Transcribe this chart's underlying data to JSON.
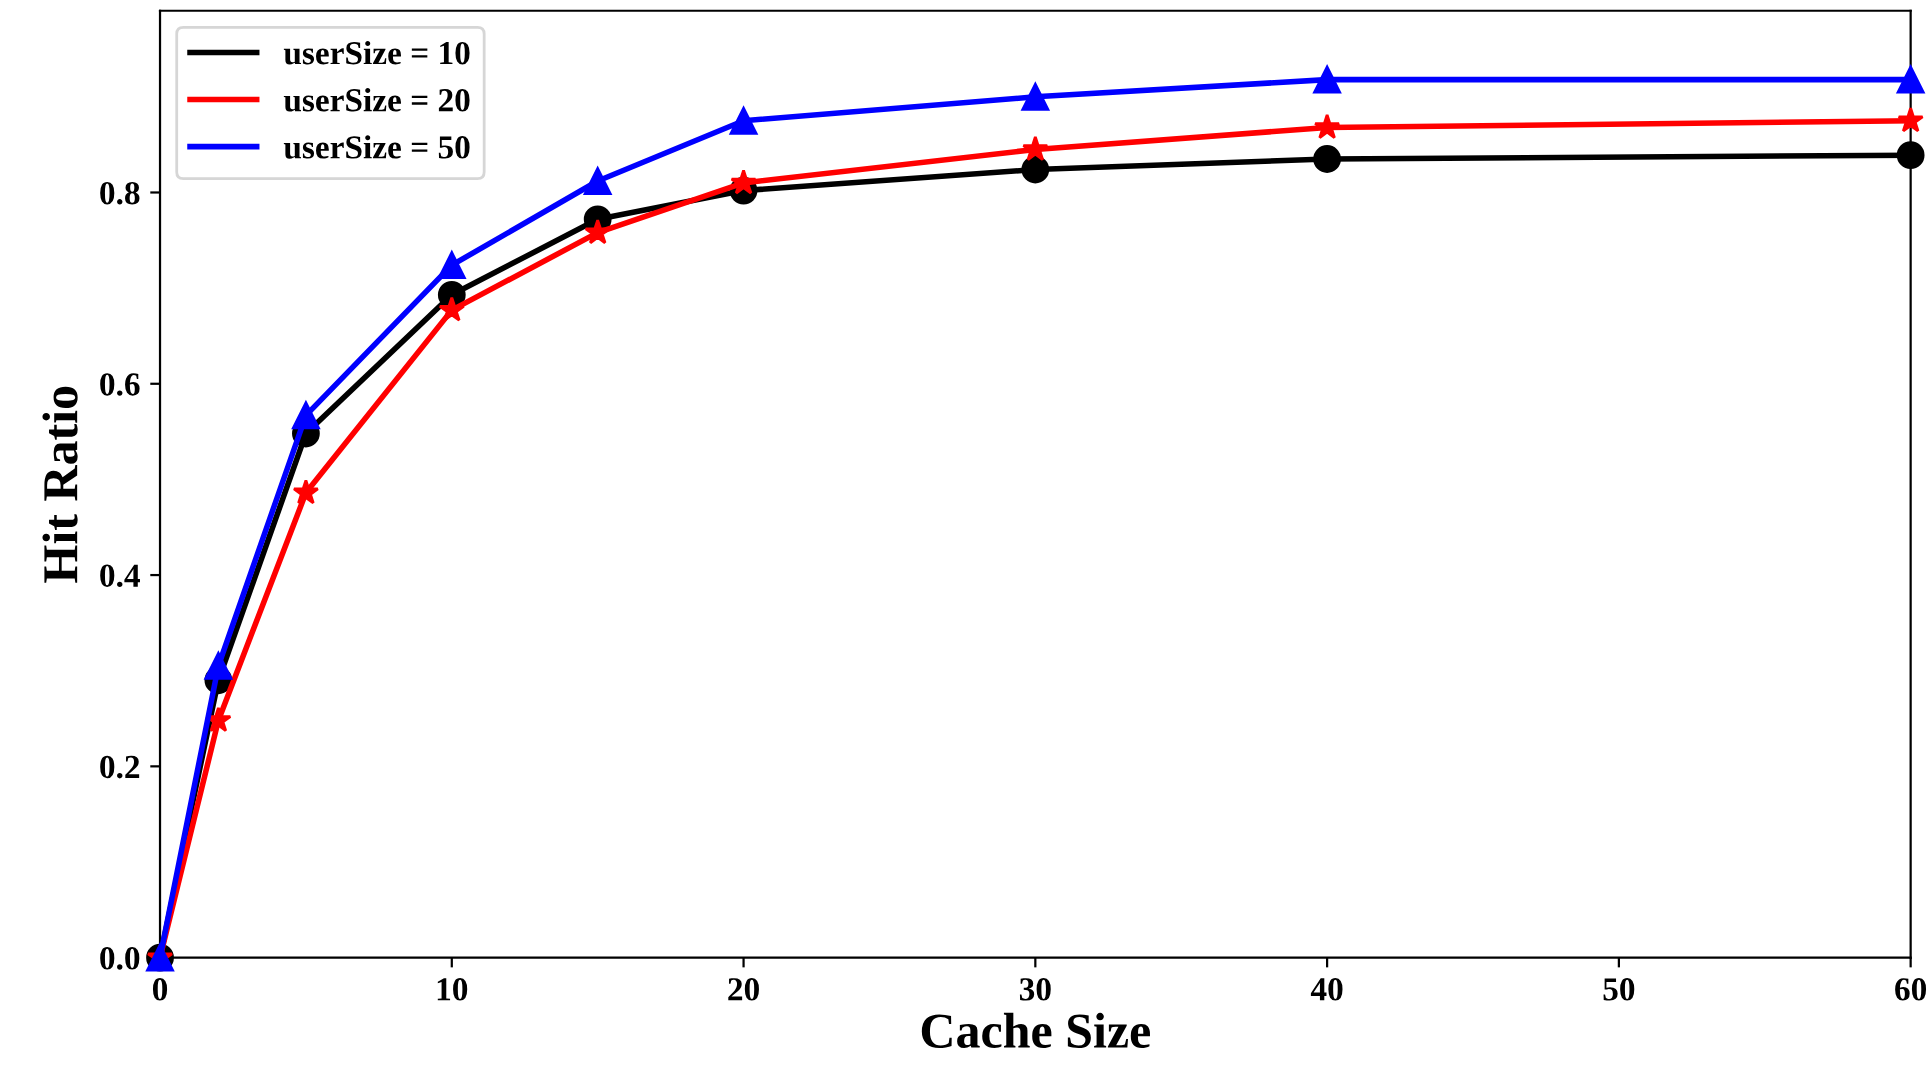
{
  "chart_data": {
    "type": "line",
    "xlabel": "Cache Size",
    "ylabel": "Hit Ratio",
    "x": [
      0,
      2,
      5,
      10,
      15,
      20,
      30,
      40,
      60
    ],
    "series": [
      {
        "name": "userSize = 10",
        "color": "#000000",
        "marker": "circle",
        "values": [
          0,
          0.29,
          0.548,
          0.693,
          0.772,
          0.802,
          0.824,
          0.835,
          0.839
        ]
      },
      {
        "name": "userSize = 20",
        "color": "#ff0000",
        "marker": "star",
        "values": [
          0,
          0.248,
          0.486,
          0.677,
          0.758,
          0.81,
          0.845,
          0.868,
          0.875
        ]
      },
      {
        "name": "userSize = 50",
        "color": "#0000ff",
        "marker": "triangle",
        "values": [
          0,
          0.305,
          0.567,
          0.724,
          0.812,
          0.875,
          0.9,
          0.918,
          0.918
        ]
      }
    ],
    "xlim": [
      0,
      60
    ],
    "xticks": [
      0,
      10,
      20,
      30,
      40,
      50,
      60
    ],
    "ylim": [
      0,
      0.99
    ],
    "yticks": [
      {
        "value": 0,
        "label": "0.0"
      },
      0.2,
      0.4,
      0.6,
      0.8
    ],
    "grid": false,
    "legend": "top left",
    "line_style": "solid"
  }
}
